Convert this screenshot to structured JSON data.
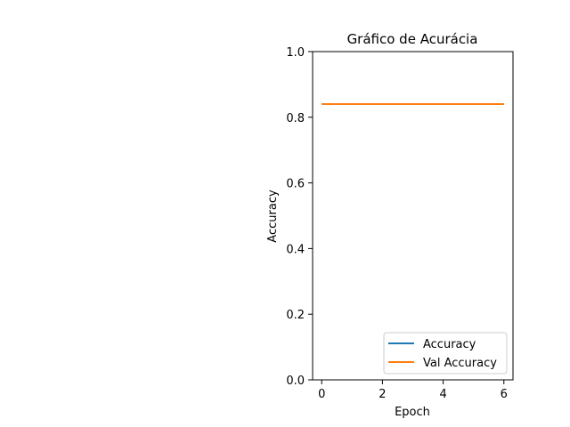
{
  "chart_data": {
    "type": "line",
    "title": "Gráfico de Acurácia",
    "xlabel": "Epoch",
    "ylabel": "Accuracy",
    "x": [
      0,
      1,
      2,
      3,
      4,
      5,
      6
    ],
    "xlim": [
      -0.3,
      6.3
    ],
    "ylim": [
      0.0,
      1.0
    ],
    "xticks": [
      0,
      2,
      4,
      6
    ],
    "xtick_labels": [
      "0",
      "2",
      "4",
      "6"
    ],
    "yticks": [
      0.0,
      0.2,
      0.4,
      0.6,
      0.8,
      1.0
    ],
    "ytick_labels": [
      "0.0",
      "0.2",
      "0.4",
      "0.6",
      "0.8",
      "1.0"
    ],
    "grid": false,
    "legend_position": "lower-right",
    "series": [
      {
        "name": "Accuracy",
        "color": "#1f77b4",
        "values": [
          0.84,
          0.84,
          0.84,
          0.84,
          0.84,
          0.84,
          0.84
        ]
      },
      {
        "name": "Val Accuracy",
        "color": "#ff7f0e",
        "values": [
          0.84,
          0.84,
          0.84,
          0.84,
          0.84,
          0.84,
          0.84
        ]
      }
    ]
  }
}
